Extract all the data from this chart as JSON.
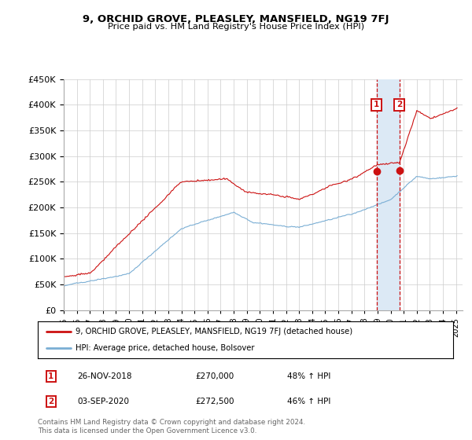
{
  "title": "9, ORCHID GROVE, PLEASLEY, MANSFIELD, NG19 7FJ",
  "subtitle": "Price paid vs. HM Land Registry's House Price Index (HPI)",
  "ylim": [
    0,
    450000
  ],
  "yticks": [
    0,
    50000,
    100000,
    150000,
    200000,
    250000,
    300000,
    350000,
    400000,
    450000
  ],
  "xlim_start": 1995.0,
  "xlim_end": 2025.5,
  "hpi_color": "#7aaed4",
  "price_color": "#cc1111",
  "shade_color": "#dce9f5",
  "sale1": {
    "date_num": 2018.917,
    "price": 270000,
    "label": "1",
    "date_str": "26-NOV-2018",
    "pct": "48% ↑ HPI"
  },
  "sale2": {
    "date_num": 2020.667,
    "price": 272500,
    "label": "2",
    "date_str": "03-SEP-2020",
    "pct": "46% ↑ HPI"
  },
  "legend_line1": "9, ORCHID GROVE, PLEASLEY, MANSFIELD, NG19 7FJ (detached house)",
  "legend_line2": "HPI: Average price, detached house, Bolsover",
  "footer": "Contains HM Land Registry data © Crown copyright and database right 2024.\nThis data is licensed under the Open Government Licence v3.0."
}
